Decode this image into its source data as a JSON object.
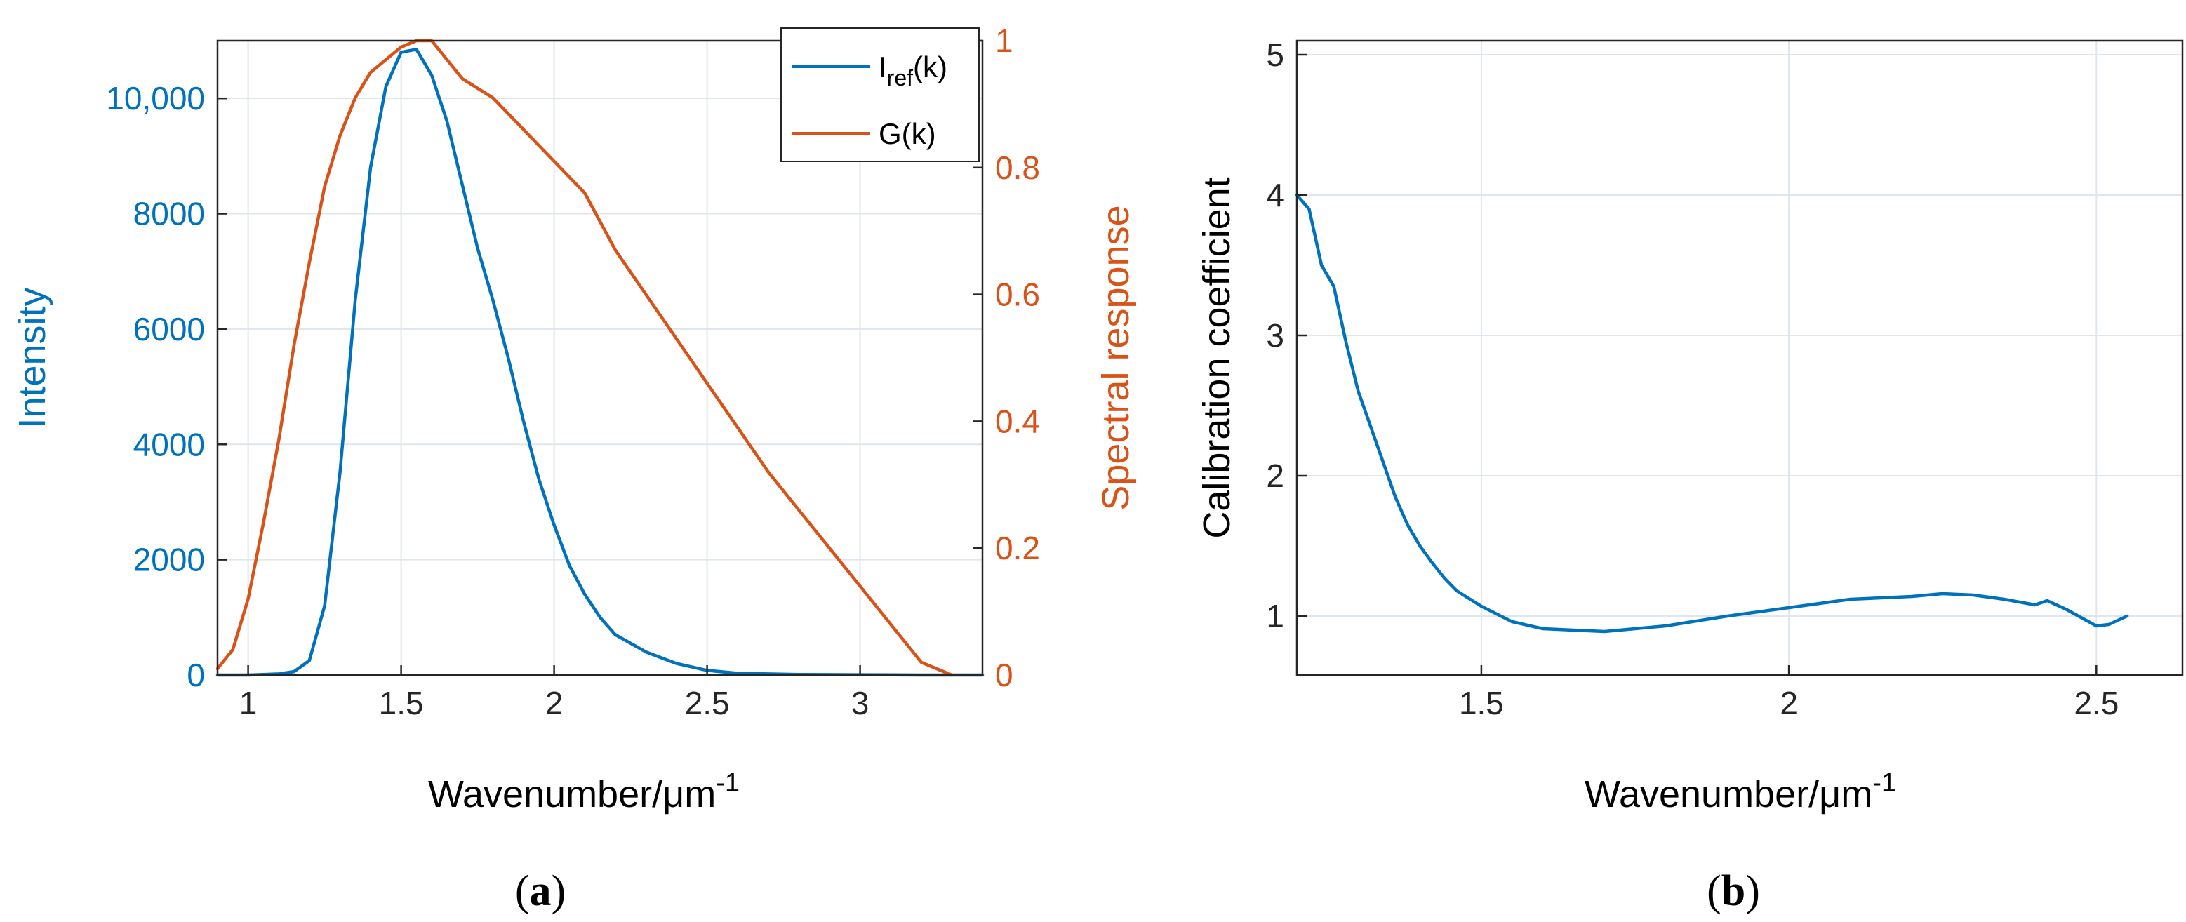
{
  "colors": {
    "blue": "#0072BD",
    "orange": "#D95319",
    "axis": "#262626",
    "grid": "#dfe6ee"
  },
  "chart_data": [
    {
      "panel": "a",
      "panel_label": "(a)",
      "type": "line",
      "xlabel": "Wavenumber/μm",
      "xlabel_sup": "-1",
      "ylabel_left": "Intensity",
      "ylabel_right": "Spectral response",
      "xlim": [
        0.9,
        3.4
      ],
      "ylim_left": [
        0,
        11000
      ],
      "ylim_right": [
        0,
        1
      ],
      "grid": true,
      "x_ticks": [
        1,
        1.5,
        2,
        2.5,
        3
      ],
      "x_tick_labels": [
        "1",
        "1.5",
        "2",
        "2.5",
        "3"
      ],
      "y_left_ticks": [
        0,
        2000,
        4000,
        6000,
        8000,
        10000
      ],
      "y_left_tick_labels": [
        "0",
        "2000",
        "4000",
        "6000",
        "8000",
        "10,000"
      ],
      "y_right_ticks": [
        0,
        0.2,
        0.4,
        0.6,
        0.8,
        1
      ],
      "y_right_tick_labels": [
        "0",
        "0.2",
        "0.4",
        "0.6",
        "0.8",
        "1"
      ],
      "legend_position": "top-right",
      "series": [
        {
          "name": "I_ref(k)",
          "legend_main": "I",
          "legend_sub": "ref",
          "legend_tail": "(k)",
          "axis": "left",
          "color": "#0072BD",
          "x": [
            0.9,
            1.0,
            1.1,
            1.15,
            1.2,
            1.25,
            1.3,
            1.35,
            1.4,
            1.45,
            1.5,
            1.55,
            1.6,
            1.65,
            1.7,
            1.75,
            1.8,
            1.85,
            1.9,
            1.95,
            2.0,
            2.05,
            2.1,
            2.15,
            2.2,
            2.3,
            2.4,
            2.5,
            2.6,
            2.8,
            3.0,
            3.2,
            3.4
          ],
          "y": [
            0,
            0,
            20,
            60,
            250,
            1200,
            3500,
            6500,
            8800,
            10200,
            10800,
            10850,
            10400,
            9600,
            8500,
            7400,
            6500,
            5500,
            4400,
            3400,
            2600,
            1900,
            1400,
            1000,
            700,
            400,
            200,
            80,
            30,
            10,
            5,
            0,
            0
          ]
        },
        {
          "name": "G(k)",
          "axis": "right",
          "color": "#D95319",
          "x": [
            0.9,
            0.95,
            1.0,
            1.05,
            1.1,
            1.15,
            1.2,
            1.25,
            1.3,
            1.35,
            1.4,
            1.45,
            1.5,
            1.55,
            1.6,
            1.65,
            1.7,
            1.8,
            1.9,
            2.0,
            2.1,
            2.2,
            2.3,
            2.4,
            2.5,
            2.6,
            2.7,
            2.8,
            2.9,
            3.0,
            3.1,
            3.2,
            3.3
          ],
          "y": [
            0.01,
            0.04,
            0.12,
            0.24,
            0.37,
            0.52,
            0.65,
            0.77,
            0.85,
            0.91,
            0.95,
            0.97,
            0.99,
            1.0,
            1.0,
            0.97,
            0.94,
            0.91,
            0.86,
            0.81,
            0.76,
            0.67,
            0.6,
            0.53,
            0.46,
            0.39,
            0.32,
            0.26,
            0.2,
            0.14,
            0.08,
            0.02,
            0.0
          ]
        }
      ]
    },
    {
      "panel": "b",
      "panel_label": "(b)",
      "type": "line",
      "xlabel": "Wavenumber/μm",
      "xlabel_sup": "-1",
      "ylabel": "Calibration coefficient",
      "xlim": [
        1.2,
        2.64
      ],
      "ylim": [
        0.58,
        5.1
      ],
      "grid": true,
      "x_ticks": [
        1.5,
        2,
        2.5
      ],
      "x_tick_labels": [
        "1.5",
        "2",
        "2.5"
      ],
      "y_ticks": [
        1,
        2,
        3,
        4,
        5
      ],
      "y_tick_labels": [
        "1",
        "2",
        "3",
        "4",
        "5"
      ],
      "series": [
        {
          "name": "Calibration coefficient",
          "color": "#0072BD",
          "x": [
            1.2,
            1.21,
            1.22,
            1.24,
            1.26,
            1.28,
            1.3,
            1.32,
            1.34,
            1.36,
            1.38,
            1.4,
            1.42,
            1.44,
            1.46,
            1.5,
            1.55,
            1.6,
            1.65,
            1.7,
            1.8,
            1.9,
            2.0,
            2.1,
            2.2,
            2.25,
            2.3,
            2.35,
            2.4,
            2.42,
            2.45,
            2.5,
            2.52,
            2.55
          ],
          "y": [
            4.0,
            3.95,
            3.9,
            3.5,
            3.35,
            2.95,
            2.6,
            2.35,
            2.1,
            1.85,
            1.65,
            1.5,
            1.38,
            1.27,
            1.18,
            1.07,
            0.96,
            0.91,
            0.9,
            0.89,
            0.93,
            1.0,
            1.06,
            1.12,
            1.14,
            1.16,
            1.15,
            1.12,
            1.08,
            1.11,
            1.05,
            0.93,
            0.94,
            1.0
          ]
        }
      ]
    }
  ]
}
